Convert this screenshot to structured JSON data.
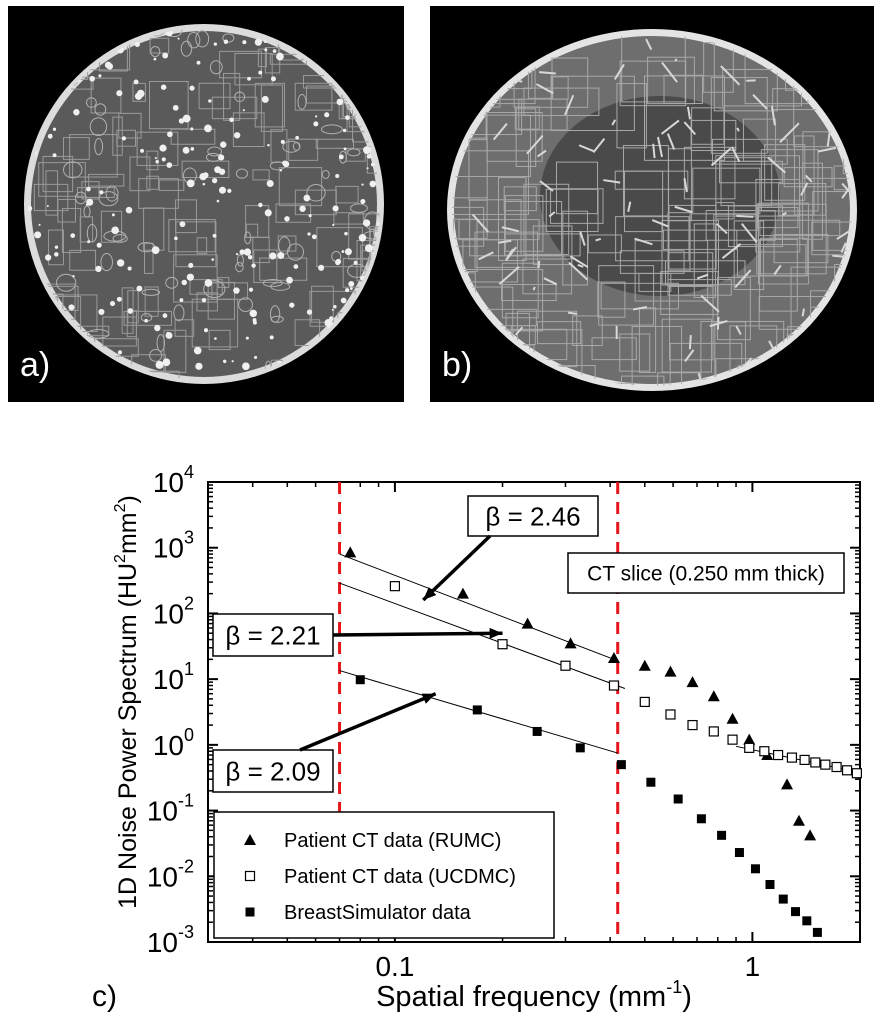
{
  "panels": [
    {
      "label": "a)"
    },
    {
      "label": "b)"
    }
  ],
  "chart_label": "c)",
  "chart_data": {
    "type": "scatter",
    "xlabel": "Spatial frequency (mm",
    "xlabel_sup": "-1",
    "xlabel_end": ")",
    "ylabel": "1D Noise Power Spectrum (HU",
    "ylabel_sup1": "2",
    "ylabel_mid": "mm",
    "ylabel_sup2": "2",
    "ylabel_end": ")",
    "x_scale": "log",
    "y_scale": "log",
    "xlim": [
      0.03,
      2.0
    ],
    "ylim": [
      0.001,
      10000
    ],
    "x_ticks": [
      {
        "value": 0.1,
        "label": "0.1"
      },
      {
        "value": 1,
        "label": "1"
      }
    ],
    "y_ticks": [
      {
        "value": 0.001,
        "base": "10",
        "exp": "-3"
      },
      {
        "value": 0.01,
        "base": "10",
        "exp": "-2"
      },
      {
        "value": 0.1,
        "base": "10",
        "exp": "-1"
      },
      {
        "value": 1,
        "base": "10",
        "exp": "0"
      },
      {
        "value": 10,
        "base": "10",
        "exp": "1"
      },
      {
        "value": 100,
        "base": "10",
        "exp": "2"
      },
      {
        "value": 1000,
        "base": "10",
        "exp": "3"
      },
      {
        "value": 10000,
        "base": "10",
        "exp": "4"
      }
    ],
    "reference_lines": [
      0.07,
      0.42
    ],
    "reference_line_color": "#e8141c",
    "series": [
      {
        "name": "Patient CT data (RUMC)",
        "marker": "filled-triangle",
        "points": [
          [
            0.075,
            850
          ],
          [
            0.155,
            200
          ],
          [
            0.235,
            70
          ],
          [
            0.31,
            35
          ],
          [
            0.41,
            21
          ],
          [
            0.5,
            16
          ],
          [
            0.59,
            13
          ],
          [
            0.68,
            9
          ],
          [
            0.78,
            5.5
          ],
          [
            0.88,
            2.5
          ],
          [
            0.98,
            1.2
          ],
          [
            1.1,
            0.7
          ],
          [
            1.25,
            0.25
          ],
          [
            1.35,
            0.07
          ],
          [
            1.45,
            0.042
          ]
        ]
      },
      {
        "name": "Patient CT data (UCDMC)",
        "marker": "open-square",
        "points": [
          [
            0.1,
            260
          ],
          [
            0.2,
            34
          ],
          [
            0.3,
            16
          ],
          [
            0.41,
            8
          ],
          [
            0.5,
            4.5
          ],
          [
            0.59,
            2.9
          ],
          [
            0.68,
            2.0
          ],
          [
            0.78,
            1.6
          ],
          [
            0.88,
            1.2
          ],
          [
            0.98,
            0.9
          ],
          [
            1.08,
            0.8
          ],
          [
            1.18,
            0.7
          ],
          [
            1.29,
            0.64
          ],
          [
            1.4,
            0.59
          ],
          [
            1.5,
            0.54
          ],
          [
            1.6,
            0.5
          ],
          [
            1.72,
            0.46
          ],
          [
            1.84,
            0.41
          ],
          [
            1.96,
            0.37
          ]
        ]
      },
      {
        "name": "BreastSimulator data",
        "marker": "filled-square",
        "points": [
          [
            0.08,
            9.8
          ],
          [
            0.17,
            3.4
          ],
          [
            0.25,
            1.6
          ],
          [
            0.33,
            0.9
          ],
          [
            0.43,
            0.5
          ],
          [
            0.52,
            0.27
          ],
          [
            0.62,
            0.15
          ],
          [
            0.72,
            0.075
          ],
          [
            0.82,
            0.042
          ],
          [
            0.92,
            0.023
          ],
          [
            1.02,
            0.013
          ],
          [
            1.12,
            0.0075
          ],
          [
            1.22,
            0.0045
          ],
          [
            1.32,
            0.0029
          ],
          [
            1.42,
            0.0021
          ],
          [
            1.52,
            0.0014
          ]
        ]
      }
    ],
    "fit_lines": [
      {
        "x": [
          0.07,
          0.42
        ],
        "y": [
          800,
          19
        ]
      },
      {
        "x": [
          0.07,
          0.44
        ],
        "y": [
          290,
          7.2
        ]
      },
      {
        "x": [
          0.07,
          0.42
        ],
        "y": [
          13.5,
          0.75
        ]
      },
      {
        "x": [
          0.9,
          2.0
        ],
        "y": [
          0.95,
          0.38
        ]
      }
    ],
    "annotations": [
      {
        "text": "β = 2.46",
        "arrow_to": [
          0.12,
          160
        ]
      },
      {
        "text": "β = 2.21",
        "arrow_to": [
          0.2,
          50
        ]
      },
      {
        "text": "β = 2.09",
        "arrow_to": [
          0.13,
          6
        ]
      },
      {
        "text": "CT slice (0.250 mm thick)"
      }
    ],
    "legend_position": "bottom-left"
  }
}
